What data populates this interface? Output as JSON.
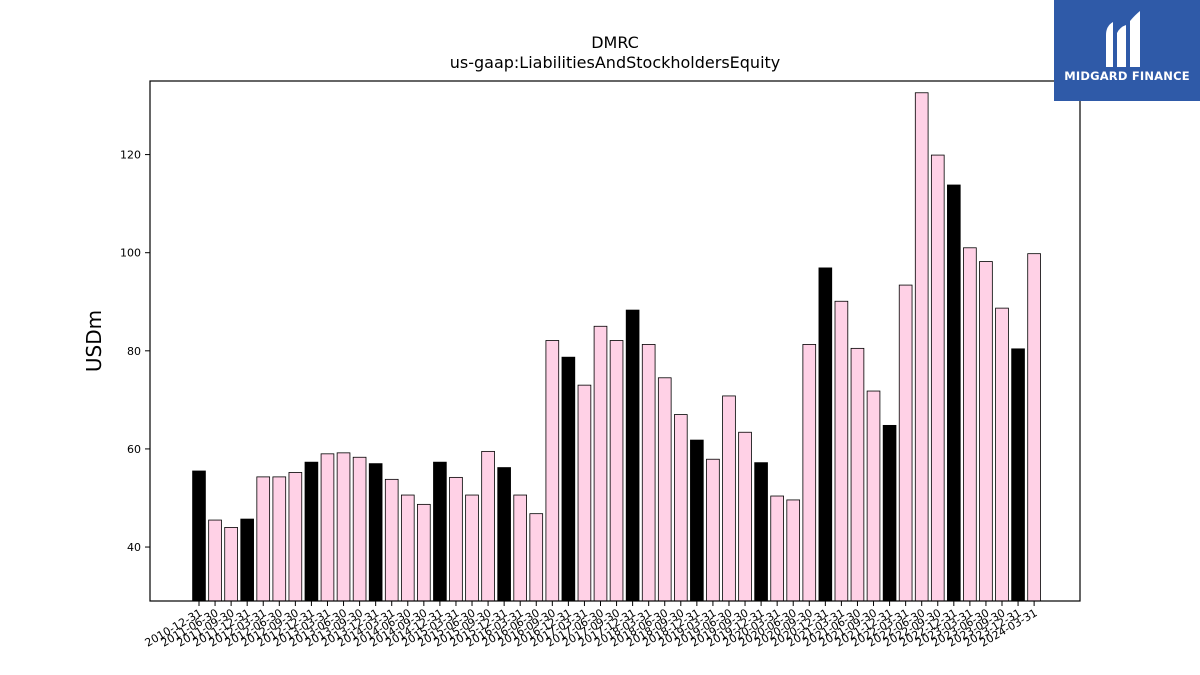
{
  "brand": {
    "name": "MIDGARD FINANCE",
    "background_color": "#2f5aa8",
    "mark_icon": "midgard-mark-icon"
  },
  "chart_data": {
    "type": "bar",
    "title": "DMRC",
    "subtitle": "us-gaap:LiabilitiesAndStockholdersEquity",
    "xlabel": "",
    "ylabel": "USDm",
    "ylim": [
      29,
      135
    ],
    "yticks": [
      40,
      60,
      80,
      100,
      120
    ],
    "grid": false,
    "legend": "none",
    "colors": {
      "annual": "#000000",
      "quarterly": "#ffd1e6",
      "edge": "#000000"
    },
    "categories": [
      "2010-12-31",
      "2011-06-30",
      "2011-09-30",
      "2011-12-31",
      "2012-03-31",
      "2012-06-30",
      "2012-09-30",
      "2012-12-31",
      "2013-03-31",
      "2013-06-30",
      "2013-09-30",
      "2013-12-31",
      "2014-03-31",
      "2014-06-30",
      "2014-09-30",
      "2014-12-31",
      "2015-03-31",
      "2015-06-30",
      "2015-09-30",
      "2015-12-31",
      "2016-03-31",
      "2016-06-30",
      "2016-09-30",
      "2016-12-31",
      "2017-03-31",
      "2017-06-30",
      "2017-09-30",
      "2017-12-31",
      "2018-03-31",
      "2018-06-30",
      "2018-09-30",
      "2018-12-31",
      "2019-03-31",
      "2019-06-30",
      "2019-09-30",
      "2019-12-31",
      "2020-03-31",
      "2020-06-30",
      "2020-09-30",
      "2020-12-31",
      "2021-03-31",
      "2021-06-30",
      "2021-09-30",
      "2021-12-31",
      "2022-03-31",
      "2022-06-30",
      "2022-09-30",
      "2022-12-31",
      "2023-03-31",
      "2023-06-30",
      "2023-09-30",
      "2023-12-31",
      "2024-03-31"
    ],
    "values": [
      55.5,
      45.5,
      44.0,
      45.7,
      54.3,
      54.3,
      55.2,
      57.3,
      59.0,
      59.2,
      58.3,
      57.0,
      53.8,
      50.6,
      48.7,
      57.3,
      54.2,
      50.6,
      59.5,
      56.2,
      50.6,
      46.8,
      82.1,
      78.7,
      73.0,
      85.0,
      82.1,
      88.3,
      81.3,
      74.5,
      67.0,
      61.8,
      57.9,
      70.8,
      63.4,
      57.2,
      50.4,
      49.6,
      81.3,
      96.9,
      90.1,
      80.5,
      71.8,
      64.8,
      93.4,
      132.6,
      119.9,
      113.8,
      101.0,
      98.2,
      88.7,
      80.4,
      99.8
    ],
    "annual_flags": [
      1,
      0,
      0,
      1,
      0,
      0,
      0,
      1,
      0,
      0,
      0,
      1,
      0,
      0,
      0,
      1,
      0,
      0,
      0,
      1,
      0,
      0,
      0,
      1,
      0,
      0,
      0,
      1,
      0,
      0,
      0,
      1,
      0,
      0,
      0,
      1,
      0,
      0,
      0,
      1,
      0,
      0,
      0,
      1,
      0,
      0,
      0,
      1,
      0,
      0,
      0,
      1,
      0
    ]
  }
}
